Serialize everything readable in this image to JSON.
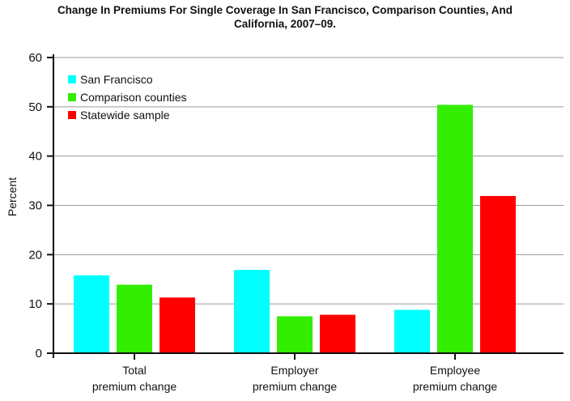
{
  "title_lines": [
    "Change In Premiums For Single Coverage In San Francisco, Comparison Counties, And",
    "California, 2007–09."
  ],
  "chart_data": {
    "type": "bar",
    "title": "Change In Premiums For Single Coverage In San Francisco, Comparison Counties, And California, 2007–09.",
    "xlabel": "",
    "ylabel": "Percent",
    "ylim": [
      0,
      60
    ],
    "yticks": [
      0,
      10,
      20,
      30,
      40,
      50,
      60
    ],
    "grid": true,
    "legend_position": "top-left",
    "categories": [
      [
        "Total",
        "premium change"
      ],
      [
        "Employer",
        "premium change"
      ],
      [
        "Employee",
        "premium change"
      ]
    ],
    "series": [
      {
        "name": "San Francisco",
        "color": "#00ffff",
        "values": [
          15.8,
          16.9,
          8.8
        ]
      },
      {
        "name": "Comparison counties",
        "color": "#33ee00",
        "values": [
          13.9,
          7.5,
          50.4
        ]
      },
      {
        "name": "Statewide sample",
        "color": "#ff0000",
        "values": [
          11.3,
          7.8,
          31.9
        ]
      }
    ]
  }
}
